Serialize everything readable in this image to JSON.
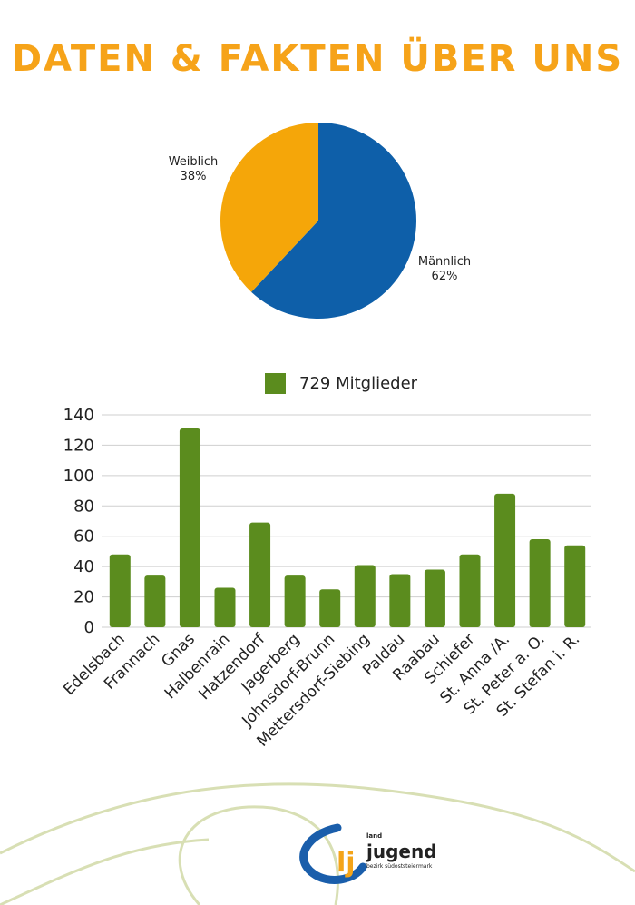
{
  "page": {
    "title": "DATEN & FAKTEN ÜBER UNS"
  },
  "colors": {
    "title": "#f6a319",
    "female": "#f5a609",
    "male": "#0e5fa9",
    "bar": "#5b8c1e",
    "grid": "#cfcfcf",
    "decor": "#d8dfb4",
    "logo_blue": "#1a5eab",
    "logo_orange": "#f4a419"
  },
  "chart_data": [
    {
      "type": "pie",
      "categories": [
        "Männlich",
        "Weiblich"
      ],
      "values": [
        62,
        38
      ],
      "labels": [
        {
          "name": "Männlich",
          "percent": "62%"
        },
        {
          "name": "Weiblich",
          "percent": "38%"
        }
      ]
    },
    {
      "type": "bar",
      "legend": "729 Mitglieder",
      "categories": [
        "Edelsbach",
        "Frannach",
        "Gnas",
        "Halbenrain",
        "Hatzendorf",
        "Jagerberg",
        "Johnsdorf-Brunn",
        "Mettersdorf-Siebing",
        "Paldau",
        "Raabau",
        "Schiefer",
        "St. Anna /A.",
        "St. Peter a. O.",
        "St. Stefan i. R."
      ],
      "values": [
        48,
        34,
        131,
        26,
        69,
        34,
        25,
        41,
        35,
        38,
        48,
        88,
        58,
        54
      ],
      "ylim": [
        0,
        140
      ],
      "yticks": [
        0,
        20,
        40,
        60,
        80,
        100,
        120,
        140
      ],
      "grid": true
    }
  ],
  "logo": {
    "top_text": "land",
    "main_text": "jugend",
    "sub_text": "bezirk südoststeiermark",
    "mark": "lj"
  }
}
